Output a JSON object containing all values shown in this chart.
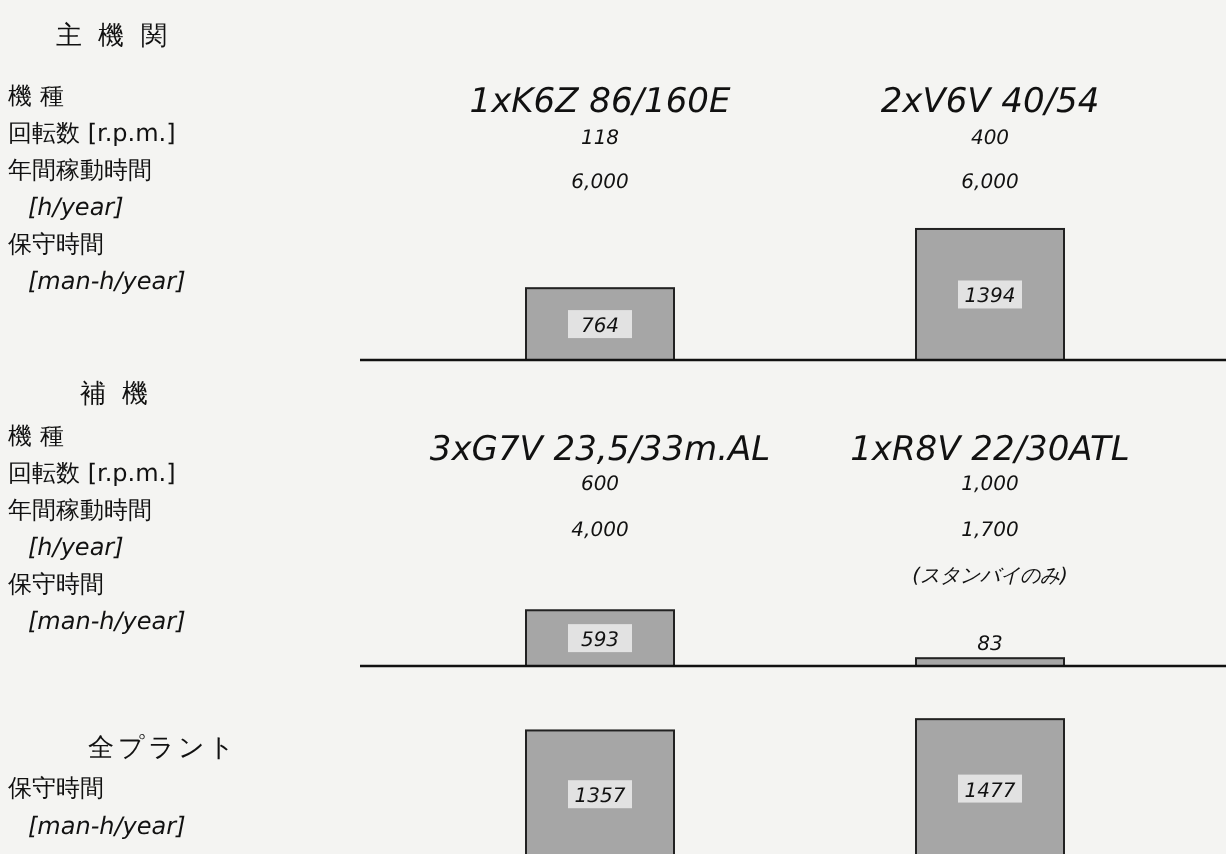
{
  "chart_data": [
    {
      "type": "bar",
      "categories": [
        "1xK6Z 86/160E\n118\n6,000",
        "2xV6V 40/54\n400\n6,000"
      ],
      "values": [
        764,
        1394
      ],
      "color": "#a6a6a6",
      "data_labels": true,
      "annotations": [
        "主 機 関",
        "機 種",
        "回転数 [r.p.m.]",
        "年間稼動時間",
        "[h/year]",
        "保守時間",
        "[man-h/year]"
      ]
    },
    {
      "type": "bar",
      "categories": [
        "3xG7V 23,5/33m.AL\n600\n4,000",
        "1xR8V 22/30ATL\n1,000\n1,700\n(スタンバイのみ)"
      ],
      "values": [
        593,
        83
      ],
      "color": "#a6a6a6",
      "data_labels": true,
      "annotations": [
        "補 機",
        "機 種",
        "回転数 [r.p.m.]",
        "年間稼動時間",
        "[h/year]",
        "保守時間",
        "[man-h/year]"
      ]
    },
    {
      "type": "bar",
      "categories": [
        null,
        null
      ],
      "values": [
        1357,
        1477
      ],
      "color": "#a6a6a6",
      "data_labels": true,
      "annotations": [
        "全プラント",
        "保守時間",
        "[man-h/year]"
      ]
    }
  ]
}
